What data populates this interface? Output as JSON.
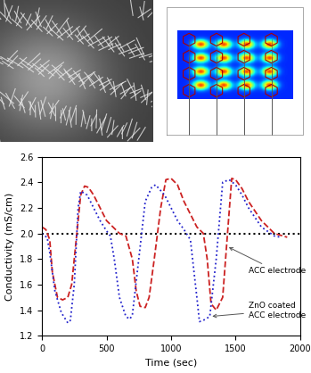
{
  "chart_data": {
    "type": "line",
    "x_label": "Time (sec)",
    "y_label": "Conductivity (mS/cm)",
    "xlim": [
      0,
      2000
    ],
    "xticks": [
      0,
      500,
      1000,
      1500,
      2000
    ],
    "ylim": [
      1.2,
      2.6
    ],
    "yticks": [
      1.2,
      1.4,
      1.6,
      1.8,
      2.0,
      2.2,
      2.4,
      2.6
    ],
    "grid": false,
    "reference_line": 2.0,
    "series": [
      {
        "name": "ACC electrode",
        "color": "#cc2222",
        "line_style": "dashed",
        "x": [
          0,
          30,
          60,
          80,
          120,
          160,
          200,
          230,
          260,
          300,
          330,
          360,
          400,
          450,
          500,
          550,
          600,
          650,
          700,
          730,
          760,
          800,
          830,
          870,
          920,
          960,
          1000,
          1050,
          1100,
          1150,
          1200,
          1250,
          1280,
          1310,
          1350,
          1400,
          1430,
          1470,
          1500,
          1550,
          1600,
          1700,
          1800,
          1900
        ],
        "values": [
          2.05,
          2.03,
          1.95,
          1.7,
          1.5,
          1.48,
          1.5,
          1.6,
          1.9,
          2.3,
          2.37,
          2.36,
          2.3,
          2.2,
          2.1,
          2.05,
          2.0,
          1.98,
          1.8,
          1.55,
          1.43,
          1.42,
          1.5,
          1.8,
          2.2,
          2.42,
          2.43,
          2.38,
          2.25,
          2.15,
          2.05,
          2.0,
          1.8,
          1.45,
          1.4,
          1.5,
          1.9,
          2.43,
          2.42,
          2.35,
          2.25,
          2.1,
          2.0,
          1.97
        ]
      },
      {
        "name": "ZnO coated ACC electrode",
        "color": "#2222cc",
        "line_style": "dotted",
        "x": [
          0,
          20,
          40,
          60,
          100,
          150,
          200,
          220,
          250,
          280,
          300,
          350,
          400,
          450,
          500,
          530,
          560,
          600,
          650,
          680,
          700,
          750,
          800,
          850,
          880,
          950,
          1000,
          1050,
          1100,
          1150,
          1200,
          1220,
          1250,
          1300,
          1350,
          1400,
          1450,
          1500,
          1550,
          1600,
          1700,
          1800,
          1850
        ],
        "values": [
          2.0,
          1.98,
          1.97,
          1.85,
          1.55,
          1.38,
          1.3,
          1.32,
          1.6,
          2.2,
          2.33,
          2.3,
          2.2,
          2.1,
          2.02,
          1.98,
          1.8,
          1.5,
          1.35,
          1.33,
          1.36,
          1.8,
          2.25,
          2.36,
          2.38,
          2.3,
          2.2,
          2.1,
          2.03,
          1.95,
          1.5,
          1.31,
          1.32,
          1.35,
          1.8,
          2.4,
          2.42,
          2.38,
          2.3,
          2.2,
          2.05,
          1.98,
          1.97
        ]
      }
    ]
  }
}
